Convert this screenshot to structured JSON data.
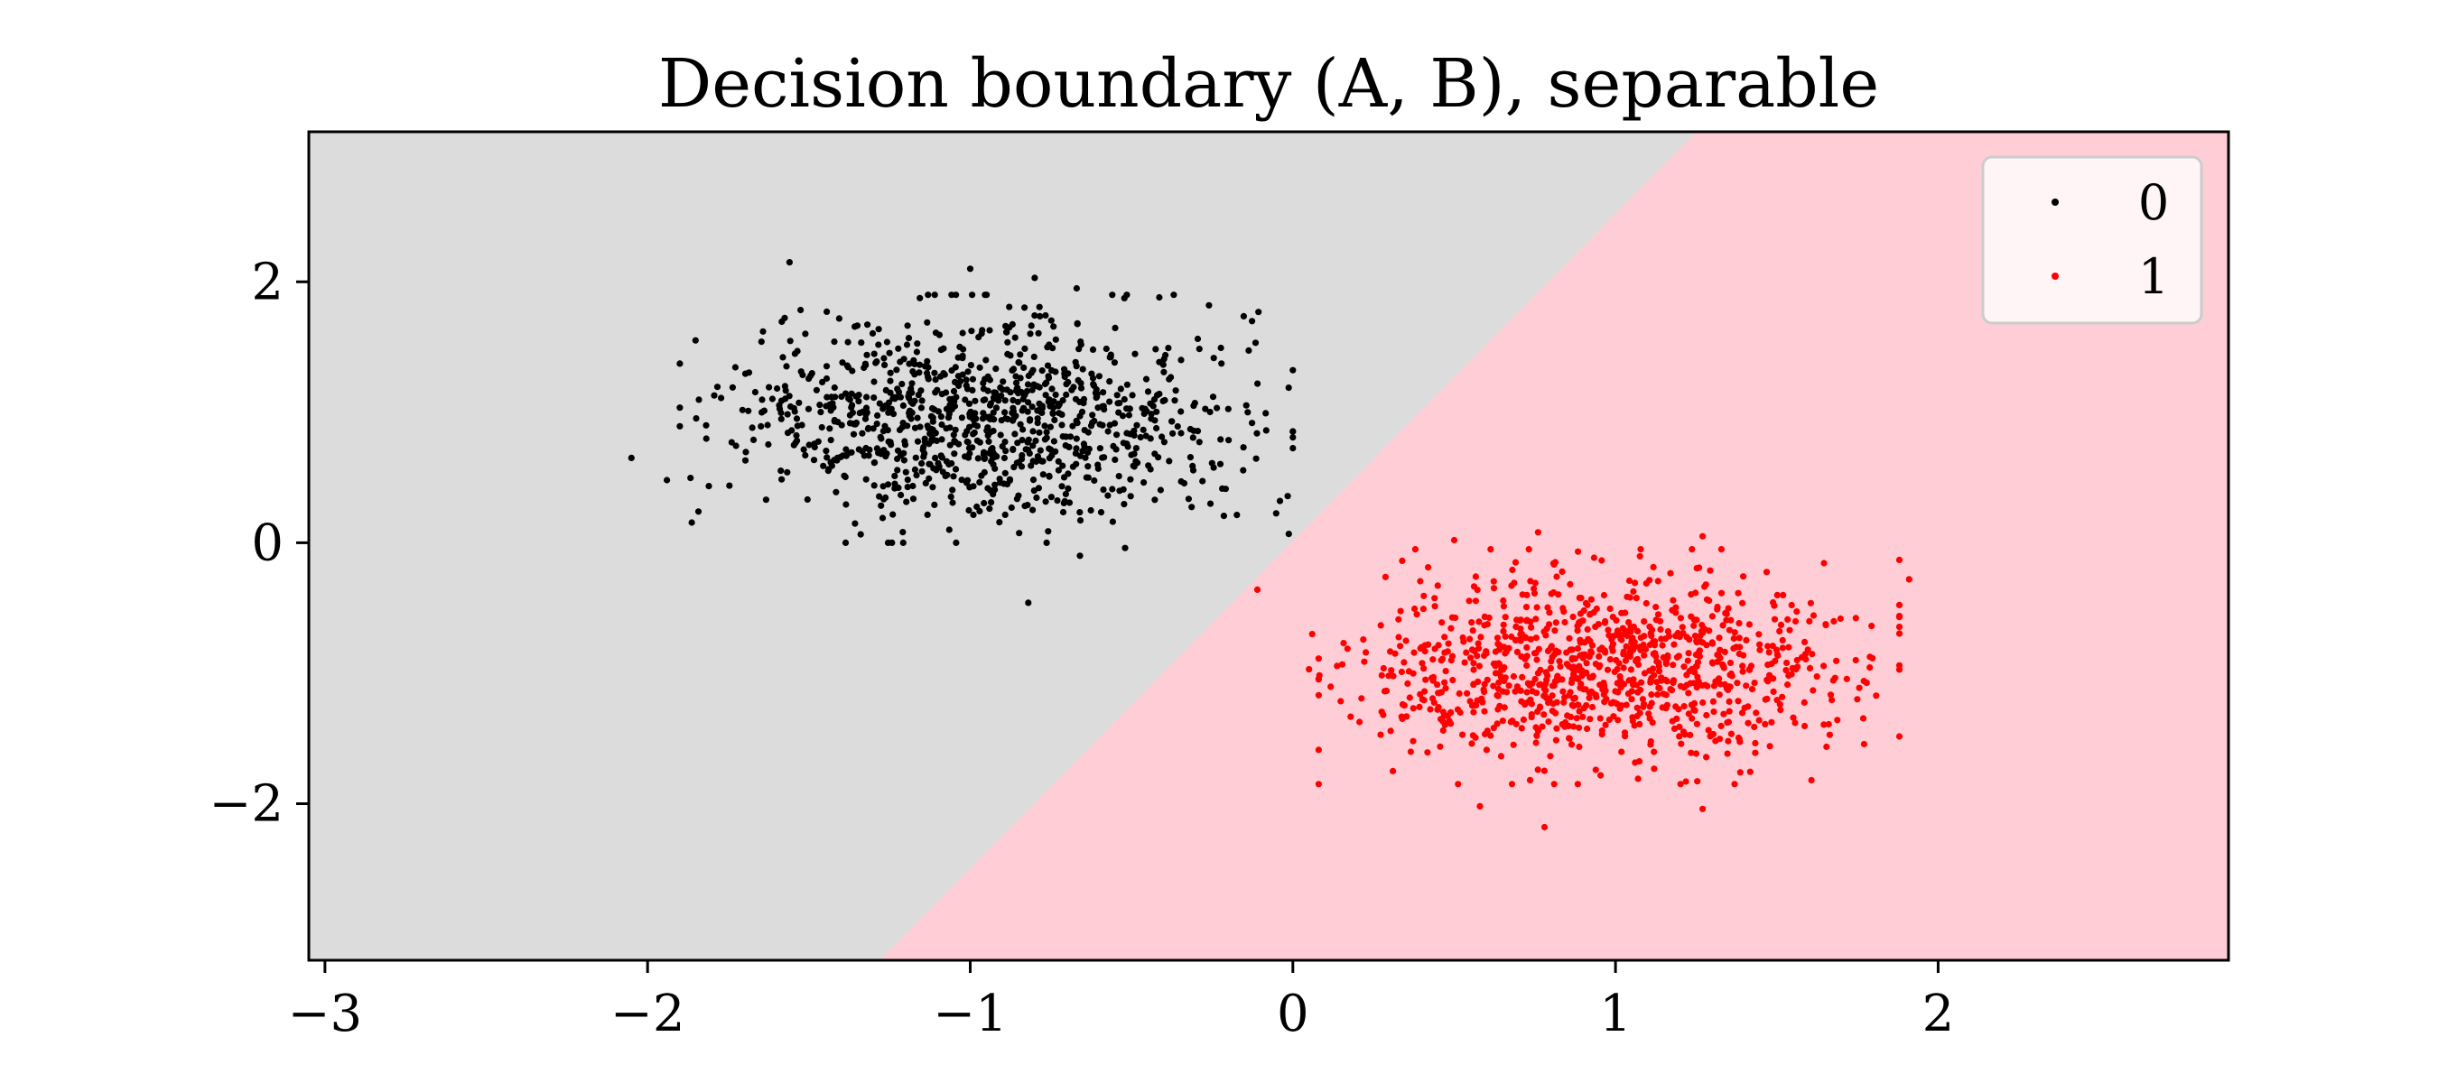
{
  "chart_data": {
    "type": "scatter",
    "title": "Decision boundary (A, B), separable",
    "xlabel": "",
    "ylabel": "",
    "xlim": [
      -3.05,
      2.9
    ],
    "ylim": [
      -3.2,
      3.15
    ],
    "xticks": [
      -3,
      -2,
      -1,
      0,
      1,
      2
    ],
    "xtick_labels": [
      "−3",
      "−2",
      "−1",
      "0",
      "1",
      "2"
    ],
    "yticks": [
      -2,
      0,
      2
    ],
    "ytick_labels": [
      "−2",
      "0",
      "2"
    ],
    "grid": false,
    "legend_position": "top-right",
    "decision_boundary": {
      "line": [
        [
          -1.28,
          -3.2
        ],
        [
          1.25,
          3.15
        ]
      ],
      "regions": [
        {
          "class": "0",
          "side": "upper-left",
          "color": "#dcdcdc"
        },
        {
          "class": "1",
          "side": "lower-right",
          "color": "#ffcdd6"
        }
      ]
    },
    "series": [
      {
        "name": "0",
        "color": "#000000",
        "center": [
          -0.95,
          0.95
        ],
        "spread": [
          0.38,
          0.38
        ],
        "count": 1000,
        "extreme_points": [
          [
            -2.05,
            0.65
          ],
          [
            -1.94,
            0.48
          ],
          [
            -1.56,
            2.15
          ],
          [
            -1.0,
            2.1
          ],
          [
            -0.8,
            2.03
          ],
          [
            -0.67,
            1.95
          ],
          [
            -0.26,
            1.82
          ],
          [
            -0.82,
            -0.46
          ],
          [
            -0.04,
            0.32
          ],
          [
            -0.14,
            1.0
          ],
          [
            -0.66,
            -0.1
          ],
          [
            -0.52,
            -0.04
          ]
        ]
      },
      {
        "name": "1",
        "color": "#ff0000",
        "center": [
          0.98,
          -0.95
        ],
        "spread": [
          0.36,
          0.36
        ],
        "count": 1000,
        "extreme_points": [
          [
            1.91,
            -0.28
          ],
          [
            -0.11,
            -0.36
          ],
          [
            0.78,
            -2.18
          ],
          [
            1.27,
            -2.04
          ],
          [
            0.05,
            -0.97
          ],
          [
            0.06,
            -0.7
          ],
          [
            1.77,
            -1.06
          ],
          [
            0.31,
            -1.75
          ],
          [
            0.5,
            0.02
          ],
          [
            0.76,
            0.08
          ],
          [
            1.27,
            0.05
          ],
          [
            0.58,
            -2.02
          ]
        ]
      }
    ]
  }
}
